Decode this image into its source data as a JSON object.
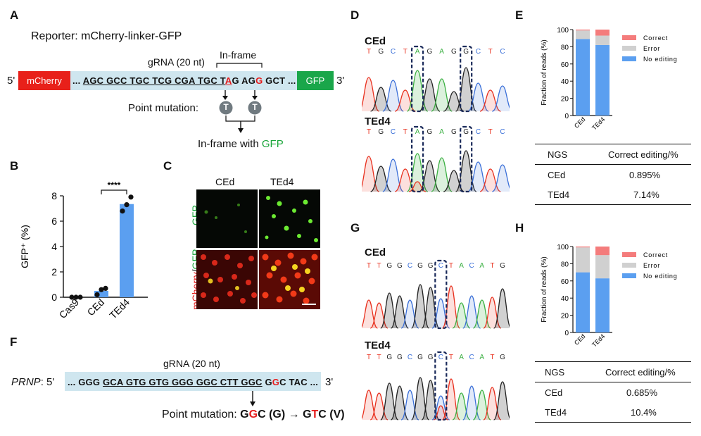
{
  "panels": {
    "A": "A",
    "B": "B",
    "C": "C",
    "D": "D",
    "E": "E",
    "F": "F",
    "G": "G",
    "H": "H"
  },
  "panelA": {
    "reporter": "Reporter: mCherry-linker-GFP",
    "grna": "gRNA (20 nt)",
    "inframe": "In-frame",
    "five": "5'",
    "three": "3'",
    "mcherry": "mCherry",
    "gfp": "GFP",
    "seq_pre": "... ",
    "seq_ul": "AGC GCC TGC TCG CGA TGC T",
    "seq_a": "A",
    "seq_g1": "G AG",
    "seq_g2": "G",
    "seq_post": " GCT ...",
    "point_mutation": "Point mutation:",
    "t": "T",
    "result_pre": "In-frame with ",
    "result_gfp": "GFP"
  },
  "panelB": {
    "ylabel": "GFP⁺ (%)",
    "sig": "****",
    "chart_data": {
      "type": "bar",
      "categories": [
        "Cas9",
        "CEd",
        "TEd4"
      ],
      "values": [
        0,
        0.5,
        7.35
      ],
      "points": [
        [
          0,
          0,
          0
        ],
        [
          0.2,
          0.6,
          0.7
        ],
        [
          6.8,
          7.3,
          7.9
        ]
      ],
      "ylim": [
        0,
        8
      ],
      "yticks": [
        "0",
        "2",
        "4",
        "6",
        "8"
      ]
    }
  },
  "panelC": {
    "col1": "CEd",
    "col2": "TEd4",
    "row1": "GFP",
    "row2a": "mCherry",
    "row2b": "/",
    "row2c": "GFP"
  },
  "panelD": {
    "t1": "CEd",
    "t2": "TEd4",
    "bases1": [
      "T",
      "G",
      "C",
      "T",
      "A",
      "G",
      "A",
      "G",
      "G",
      "C",
      "T",
      "C"
    ],
    "bases2": [
      "T",
      "G",
      "C",
      "T",
      "A",
      "G",
      "A",
      "G",
      "G",
      "C",
      "T",
      "C"
    ]
  },
  "panelG": {
    "t1": "CEd",
    "t2": "TEd4",
    "bases1": [
      "T",
      "T",
      "G",
      "G",
      "C",
      "G",
      "G",
      "C",
      "T",
      "A",
      "C",
      "A",
      "T",
      "G"
    ],
    "bases2": [
      "T",
      "T",
      "G",
      "G",
      "C",
      "G",
      "G",
      "C",
      "T",
      "A",
      "C",
      "A",
      "T",
      "G"
    ]
  },
  "panelE": {
    "ylabel": "Fraction of reads (%)",
    "legend": [
      "Correct",
      "Error",
      "No editing"
    ],
    "colors": {
      "correct": "#f47c7c",
      "error": "#d0d0d0",
      "noedit": "#5b9ff0"
    },
    "chart_data": {
      "type": "bar",
      "categories": [
        "CEd",
        "TEd4"
      ],
      "series": [
        {
          "name": "No editing",
          "values": [
            89,
            82
          ]
        },
        {
          "name": "Error",
          "values": [
            10,
            11
          ]
        },
        {
          "name": "Correct",
          "values": [
            1,
            7
          ]
        }
      ],
      "ylim": [
        0,
        100
      ],
      "yticks": [
        "0",
        "20",
        "40",
        "60",
        "80",
        "100"
      ]
    },
    "table": {
      "h1": "NGS",
      "h2": "Correct editing/%",
      "rows": [
        [
          "CEd",
          "0.895%"
        ],
        [
          "TEd4",
          "7.14%"
        ]
      ]
    }
  },
  "panelH": {
    "ylabel": "Fraction of reads (%)",
    "legend": [
      "Correct",
      "Error",
      "No editing"
    ],
    "chart_data": {
      "type": "bar",
      "categories": [
        "CEd",
        "TEd4"
      ],
      "series": [
        {
          "name": "No editing",
          "values": [
            70,
            63
          ]
        },
        {
          "name": "Error",
          "values": [
            29,
            27
          ]
        },
        {
          "name": "Correct",
          "values": [
            1,
            10
          ]
        }
      ],
      "ylim": [
        0,
        100
      ],
      "yticks": [
        "0",
        "20",
        "40",
        "60",
        "80",
        "100"
      ]
    },
    "table": {
      "h1": "NGS",
      "h2": "Correct editing/%",
      "rows": [
        [
          "CEd",
          "0.685%"
        ],
        [
          "TEd4",
          "10.4%"
        ]
      ]
    }
  },
  "panelF": {
    "grna": "gRNA (20 nt)",
    "gene": "PRNP",
    "five": ": 5'",
    "three": "3'",
    "seq_pre": "... GGG ",
    "seq_ul": "GCA GTG GTG GGG GGC CTT GGC",
    "seq_g": " G",
    "seq_gred": "G",
    "seq_post": "C TAC ...",
    "pm_label": "Point mutation: ",
    "pm_g1": "G",
    "pm_g2": "G",
    "pm_c1": "C (G) ",
    "arrow": "→",
    "pm_g3": " G",
    "pm_t": "T",
    "pm_c2": "C (V)"
  }
}
